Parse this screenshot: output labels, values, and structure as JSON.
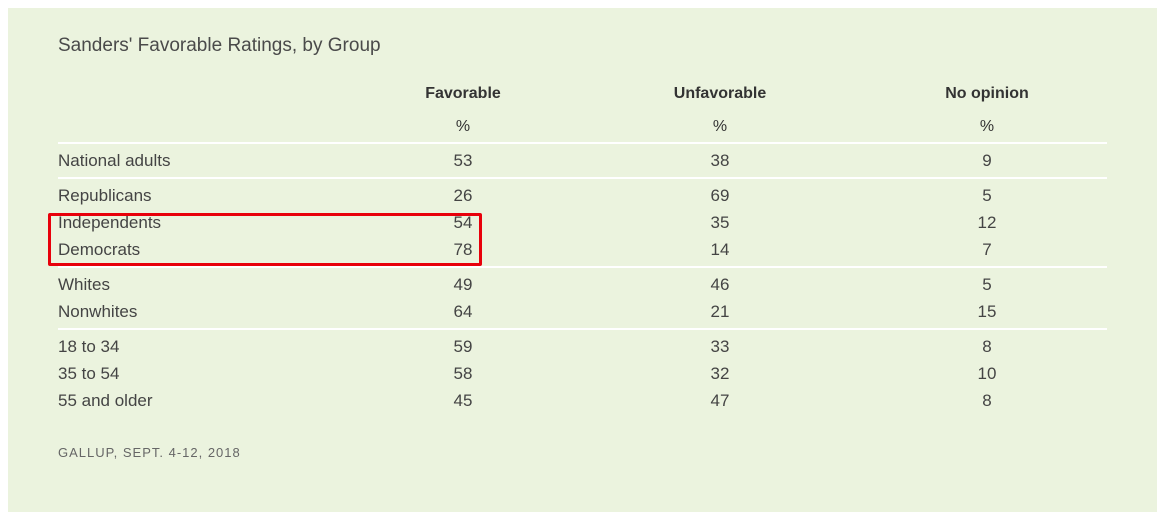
{
  "chart_data": {
    "type": "table",
    "title": "Sanders' Favorable Ratings, by Group",
    "columns": [
      "Favorable",
      "Unfavorable",
      "No opinion"
    ],
    "unit": "%",
    "groups": [
      {
        "rows": [
          {
            "label": "National adults",
            "values": [
              "53",
              "38",
              "9"
            ]
          }
        ]
      },
      {
        "rows": [
          {
            "label": "Republicans",
            "values": [
              "26",
              "69",
              "5"
            ]
          },
          {
            "label": "Independents",
            "values": [
              "54",
              "35",
              "12"
            ]
          },
          {
            "label": "Democrats",
            "values": [
              "78",
              "14",
              "7"
            ]
          }
        ]
      },
      {
        "rows": [
          {
            "label": "Whites",
            "values": [
              "49",
              "46",
              "5"
            ]
          },
          {
            "label": "Nonwhites",
            "values": [
              "64",
              "21",
              "15"
            ]
          }
        ]
      },
      {
        "rows": [
          {
            "label": "18 to 34",
            "values": [
              "59",
              "33",
              "8"
            ]
          },
          {
            "label": "35 to 54",
            "values": [
              "58",
              "32",
              "10"
            ]
          },
          {
            "label": "55 and older",
            "values": [
              "45",
              "47",
              "8"
            ]
          }
        ]
      }
    ],
    "highlighted_rows": [
      "Independents",
      "Democrats"
    ],
    "highlight_color": "#e8000b",
    "source": "GALLUP, SEPT. 4-12, 2018"
  },
  "colors": {
    "background": "#ebf3de",
    "highlight": "#e8000b"
  }
}
